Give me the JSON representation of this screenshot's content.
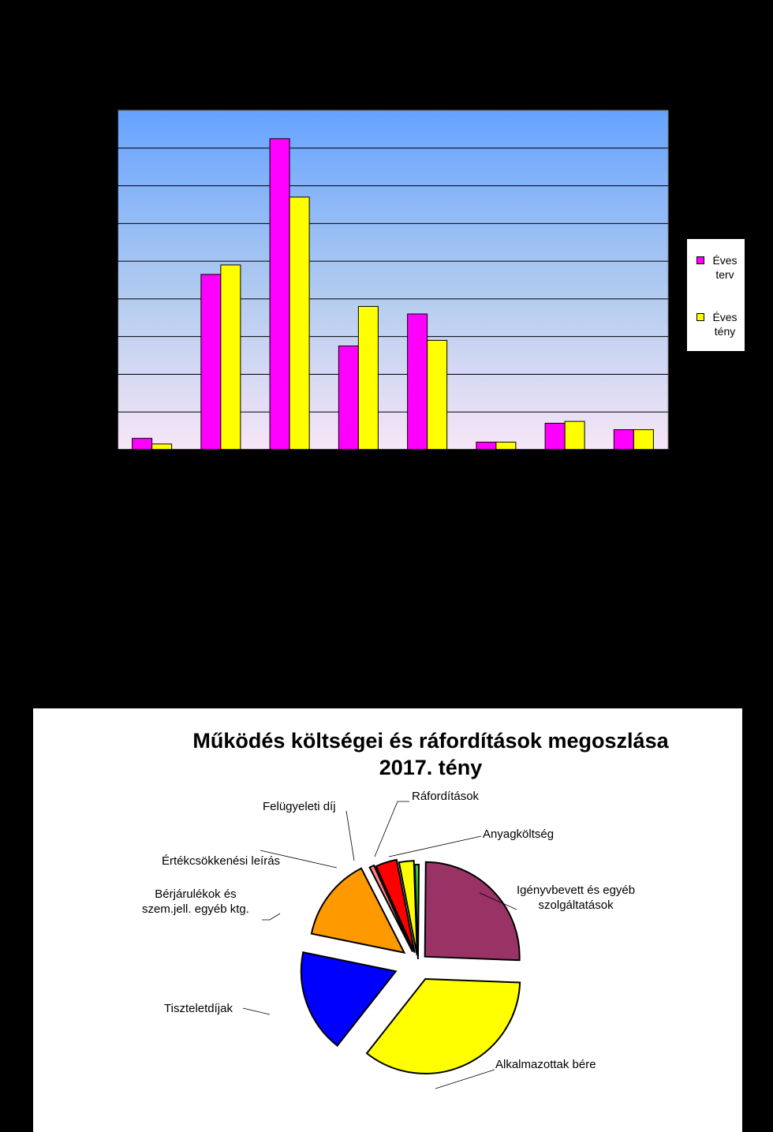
{
  "chart_data": [
    {
      "type": "bar",
      "title": "",
      "xlabel": "",
      "ylabel": "",
      "categories": [
        "",
        "",
        "",
        "",
        "",
        "",
        "",
        ""
      ],
      "series": [
        {
          "name": "Éves terv",
          "color": "#ff00ff",
          "values": [
            3,
            46.5,
            82.5,
            27.5,
            36,
            2,
            7,
            5.3
          ]
        },
        {
          "name": "Éves tény",
          "color": "#ffff00",
          "values": [
            1.5,
            49,
            67,
            38,
            29,
            2,
            7.5,
            5.3
          ]
        }
      ],
      "ylim": [
        0,
        90
      ],
      "grid": true,
      "legend_position": "right",
      "background": "vertical gradient blue to pink",
      "legend": {
        "items": [
          {
            "line1": "Éves",
            "line2": "terv",
            "color": "#ff00ff"
          },
          {
            "line1": "Éves",
            "line2": "tény",
            "color": "#ffff00"
          }
        ]
      }
    },
    {
      "type": "pie",
      "title": "Működés költségei és ráfordítások megoszlása 2017. tény",
      "title_line1": "Működés költségei és ráfordítások megoszlása",
      "title_line2": "2017. tény",
      "slices": [
        {
          "label": "Anyagköltség",
          "value": 0.7,
          "color": "#33cc33"
        },
        {
          "label": "Igényvbevett  és egyéb szolgáltatások",
          "label_line1": "Igényvbevett  és egyéb",
          "label_line2": "szolgáltatások",
          "value": 25.3,
          "color": "#993366"
        },
        {
          "label": "Alkalmazottak  bére",
          "value": 34.8,
          "color": "#ffff00"
        },
        {
          "label": "Tiszteletdíjak",
          "value": 17.5,
          "color": "#0000ff"
        },
        {
          "label": "Bérjárulékok és szem.jell.  egyéb ktg.",
          "label_line1": "Bérjárulékok és",
          "label_line2": "szem.jell.  egyéb ktg.",
          "value": 14.2,
          "color": "#ff9900"
        },
        {
          "label": "Értékcsökkenési  leírás",
          "value": 0.8,
          "color": "#ff8080"
        },
        {
          "label": "Felügyeleti  díj",
          "value": 3.6,
          "color": "#ff0000"
        },
        {
          "label": "Ráfordítások",
          "value": 2.5,
          "color": "#ffff00"
        }
      ]
    }
  ]
}
